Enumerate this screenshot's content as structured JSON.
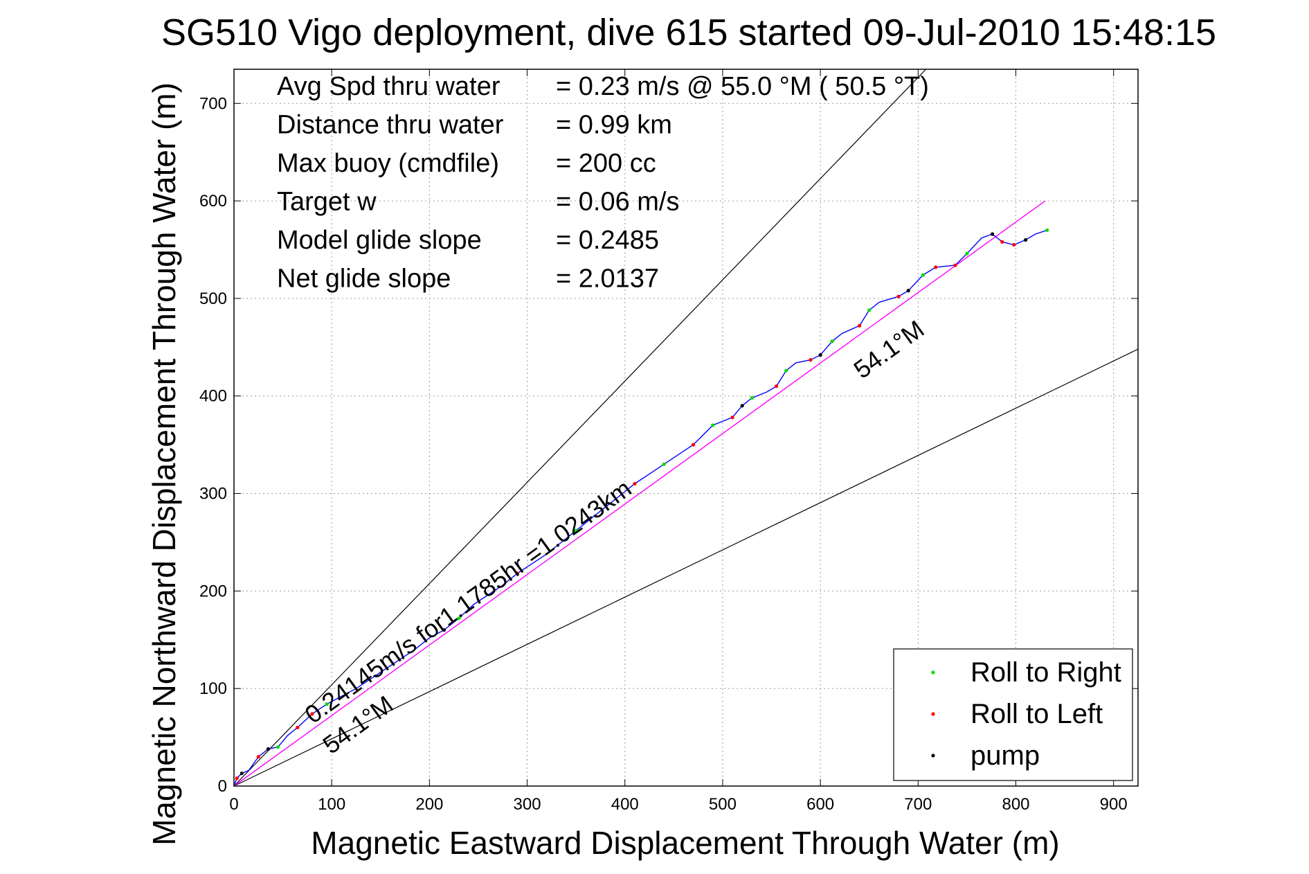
{
  "chart_data": {
    "type": "line",
    "title": "SG510 Vigo deployment, dive 615 started 09-Jul-2010 15:48:15",
    "xlabel": "Magnetic Eastward Displacement Through Water (m)",
    "ylabel": "Magnetic Northward Displacement Through Water (m)",
    "xlim": [
      0,
      925
    ],
    "ylim": [
      0,
      735
    ],
    "xticks": [
      "0",
      "100",
      "200",
      "300",
      "400",
      "500",
      "600",
      "700",
      "800",
      "900"
    ],
    "yticks": [
      "0",
      "100",
      "200",
      "300",
      "400",
      "500",
      "600",
      "700"
    ],
    "grid": true,
    "legend_position": "bottom-right",
    "stats": [
      {
        "label": "Avg Spd thru water",
        "value": "=  0.23 m/s @  55.0 °M ( 50.5 °T)"
      },
      {
        "label": "Distance thru water",
        "value": "=  0.99 km"
      },
      {
        "label": "Max buoy (cmdfile)",
        "value": "= 200 cc"
      },
      {
        "label": "Target w",
        "value": "= 0.06 m/s"
      },
      {
        "label": "Model glide slope",
        "value": "= 0.2485"
      },
      {
        "label": "Net glide slope",
        "value": "= 2.0137"
      }
    ],
    "annotations": {
      "heading_upper": "54.1°M",
      "heading_lower": "54.1°M",
      "speed_note": "0.24145m/s for1.1785hr =1.0243km"
    },
    "series": [
      {
        "name": "Roll to Right",
        "color": "#00dd00"
      },
      {
        "name": "Roll to Left",
        "color": "#ff0000"
      },
      {
        "name": "pump",
        "color": "#000000"
      }
    ],
    "guide_lines": [
      {
        "points": [
          [
            0,
            0
          ],
          [
            708,
            735
          ]
        ],
        "color": "#000000"
      },
      {
        "points": [
          [
            0,
            0
          ],
          [
            925,
            448
          ]
        ],
        "color": "#000000"
      }
    ],
    "mean_track": {
      "points": [
        [
          0,
          0
        ],
        [
          830,
          600
        ]
      ],
      "color": "#ff00ff"
    },
    "track": {
      "color": "#0000ff",
      "points": [
        [
          0,
          0
        ],
        [
          3,
          8
        ],
        [
          8,
          13
        ],
        [
          15,
          16
        ],
        [
          25,
          30
        ],
        [
          35,
          38
        ],
        [
          45,
          40
        ],
        [
          55,
          52
        ],
        [
          65,
          60
        ],
        [
          80,
          74
        ],
        [
          95,
          84
        ],
        [
          110,
          92
        ],
        [
          125,
          100
        ],
        [
          140,
          110
        ],
        [
          155,
          120
        ],
        [
          170,
          130
        ],
        [
          185,
          140
        ],
        [
          200,
          152
        ],
        [
          215,
          160
        ],
        [
          230,
          172
        ],
        [
          245,
          186
        ],
        [
          260,
          196
        ],
        [
          275,
          206
        ],
        [
          290,
          218
        ],
        [
          305,
          228
        ],
        [
          320,
          238
        ],
        [
          335,
          250
        ],
        [
          350,
          262
        ],
        [
          365,
          274
        ],
        [
          380,
          286
        ],
        [
          395,
          298
        ],
        [
          410,
          310
        ],
        [
          425,
          320
        ],
        [
          440,
          330
        ],
        [
          455,
          340
        ],
        [
          470,
          350
        ],
        [
          480,
          360
        ],
        [
          490,
          370
        ],
        [
          510,
          378
        ],
        [
          520,
          390
        ],
        [
          530,
          398
        ],
        [
          545,
          404
        ],
        [
          555,
          410
        ],
        [
          565,
          426
        ],
        [
          575,
          434
        ],
        [
          590,
          437
        ],
        [
          600,
          442
        ],
        [
          612,
          456
        ],
        [
          622,
          464
        ],
        [
          640,
          472
        ],
        [
          650,
          488
        ],
        [
          660,
          496
        ],
        [
          680,
          502
        ],
        [
          690,
          508
        ],
        [
          705,
          524
        ],
        [
          718,
          532
        ],
        [
          738,
          534
        ],
        [
          750,
          546
        ],
        [
          765,
          562
        ],
        [
          776,
          566
        ],
        [
          786,
          558
        ],
        [
          798,
          555
        ],
        [
          810,
          560
        ],
        [
          820,
          566
        ],
        [
          832,
          570
        ]
      ]
    },
    "right_points": [
      [
        45,
        40
      ],
      [
        95,
        84
      ],
      [
        230,
        172
      ],
      [
        350,
        262
      ],
      [
        440,
        330
      ],
      [
        490,
        370
      ],
      [
        530,
        398
      ],
      [
        565,
        426
      ],
      [
        612,
        456
      ],
      [
        650,
        488
      ],
      [
        705,
        524
      ],
      [
        750,
        546
      ],
      [
        832,
        570
      ]
    ],
    "left_points": [
      [
        3,
        8
      ],
      [
        25,
        30
      ],
      [
        65,
        60
      ],
      [
        80,
        74
      ],
      [
        290,
        218
      ],
      [
        410,
        310
      ],
      [
        470,
        350
      ],
      [
        510,
        378
      ],
      [
        555,
        410
      ],
      [
        590,
        437
      ],
      [
        640,
        472
      ],
      [
        680,
        502
      ],
      [
        718,
        532
      ],
      [
        738,
        534
      ],
      [
        786,
        558
      ],
      [
        798,
        555
      ]
    ],
    "pump_points": [
      [
        8,
        13
      ],
      [
        35,
        38
      ],
      [
        215,
        160
      ],
      [
        520,
        390
      ],
      [
        600,
        442
      ],
      [
        690,
        508
      ],
      [
        776,
        566
      ],
      [
        810,
        560
      ]
    ]
  }
}
